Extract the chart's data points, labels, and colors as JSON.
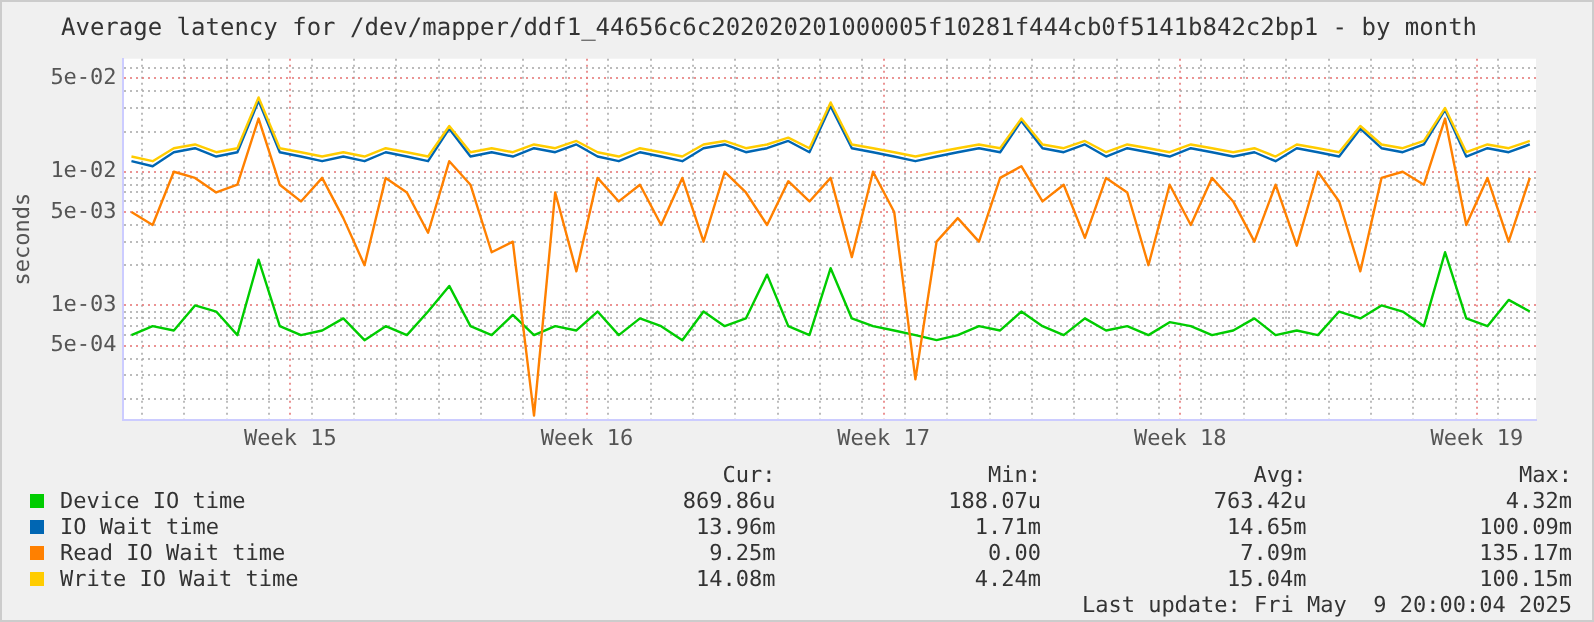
{
  "chart_data": {
    "type": "line",
    "title": "Average latency for /dev/mapper/ddf1_44656c6c202020201000005f10281f444cb0f5141b842c2bp1 - by month",
    "ylabel": "seconds",
    "log": "y",
    "grid": true,
    "legend": "bottom",
    "marker": "none",
    "line_style": "solid",
    "x": [
      "2025-04-06T18:00",
      "2025-04-07T06:00",
      "2025-04-07T18:00",
      "2025-04-08T06:00",
      "2025-04-08T18:00",
      "2025-04-09T06:00",
      "2025-04-09T18:00",
      "2025-04-10T06:00",
      "2025-04-10T18:00",
      "2025-04-11T06:00",
      "2025-04-11T18:00",
      "2025-04-12T06:00",
      "2025-04-12T18:00",
      "2025-04-13T06:00",
      "2025-04-13T18:00",
      "2025-04-14T06:00",
      "2025-04-14T18:00",
      "2025-04-15T06:00",
      "2025-04-15T18:00",
      "2025-04-16T06:00",
      "2025-04-16T18:00",
      "2025-04-17T06:00",
      "2025-04-17T18:00",
      "2025-04-18T06:00",
      "2025-04-18T18:00",
      "2025-04-19T06:00",
      "2025-04-19T18:00",
      "2025-04-20T06:00",
      "2025-04-20T18:00",
      "2025-04-21T06:00",
      "2025-04-21T18:00",
      "2025-04-22T06:00",
      "2025-04-22T18:00",
      "2025-04-23T06:00",
      "2025-04-23T18:00",
      "2025-04-24T06:00",
      "2025-04-24T18:00",
      "2025-04-25T06:00",
      "2025-04-25T18:00",
      "2025-04-26T06:00",
      "2025-04-26T18:00",
      "2025-04-27T06:00",
      "2025-04-27T18:00",
      "2025-04-28T06:00",
      "2025-04-28T18:00",
      "2025-04-29T06:00",
      "2025-04-29T18:00",
      "2025-04-30T06:00",
      "2025-04-30T18:00",
      "2025-05-01T06:00",
      "2025-05-01T18:00",
      "2025-05-02T06:00",
      "2025-05-02T18:00",
      "2025-05-03T06:00",
      "2025-05-03T18:00",
      "2025-05-04T06:00",
      "2025-05-04T18:00",
      "2025-05-05T06:00",
      "2025-05-05T18:00",
      "2025-05-06T06:00",
      "2025-05-06T18:00",
      "2025-05-07T06:00",
      "2025-05-07T18:00",
      "2025-05-08T06:00",
      "2025-05-08T18:00",
      "2025-05-09T06:00",
      "2025-05-09T18:00"
    ],
    "xlim": [
      "2025-04-06T13:00",
      "2025-05-09T21:30"
    ],
    "xticks": [
      {
        "value": "2025-04-07",
        "label": null
      },
      {
        "value": "2025-04-08",
        "label": null
      },
      {
        "value": "2025-04-09",
        "label": null
      },
      {
        "value": "2025-04-10",
        "label": null
      },
      {
        "value": "2025-04-10T12:00",
        "label": "Week 15"
      },
      {
        "value": "2025-04-11",
        "label": null
      },
      {
        "value": "2025-04-12",
        "label": null
      },
      {
        "value": "2025-04-13",
        "label": null
      },
      {
        "value": "2025-04-14",
        "label": null
      },
      {
        "value": "2025-04-15",
        "label": null
      },
      {
        "value": "2025-04-16",
        "label": null
      },
      {
        "value": "2025-04-17",
        "label": null
      },
      {
        "value": "2025-04-17T12:00",
        "label": "Week 16"
      },
      {
        "value": "2025-04-18",
        "label": null
      },
      {
        "value": "2025-04-19",
        "label": null
      },
      {
        "value": "2025-04-20",
        "label": null
      },
      {
        "value": "2025-04-21",
        "label": null
      },
      {
        "value": "2025-04-22",
        "label": null
      },
      {
        "value": "2025-04-23",
        "label": null
      },
      {
        "value": "2025-04-24",
        "label": null
      },
      {
        "value": "2025-04-24T12:00",
        "label": "Week 17"
      },
      {
        "value": "2025-04-25",
        "label": null
      },
      {
        "value": "2025-04-26",
        "label": null
      },
      {
        "value": "2025-04-27",
        "label": null
      },
      {
        "value": "2025-04-28",
        "label": null
      },
      {
        "value": "2025-04-29",
        "label": null
      },
      {
        "value": "2025-04-30",
        "label": null
      },
      {
        "value": "2025-05-01",
        "label": null
      },
      {
        "value": "2025-05-01T12:00",
        "label": "Week 18"
      },
      {
        "value": "2025-05-02",
        "label": null
      },
      {
        "value": "2025-05-03",
        "label": null
      },
      {
        "value": "2025-05-04",
        "label": null
      },
      {
        "value": "2025-05-05",
        "label": null
      },
      {
        "value": "2025-05-06",
        "label": null
      },
      {
        "value": "2025-05-07",
        "label": null
      },
      {
        "value": "2025-05-08",
        "label": null
      },
      {
        "value": "2025-05-08T12:00",
        "label": "Week 19"
      },
      {
        "value": "2025-05-09",
        "label": null
      }
    ],
    "ylim": [
      0.00014,
      0.07
    ],
    "yticks": [
      {
        "value": 0.0002,
        "label": null
      },
      {
        "value": 0.0003,
        "label": null
      },
      {
        "value": 0.0004,
        "label": null
      },
      {
        "value": 0.0005,
        "label": "5e-04"
      },
      {
        "value": 0.0006,
        "label": null
      },
      {
        "value": 0.0007,
        "label": null
      },
      {
        "value": 0.0008,
        "label": null
      },
      {
        "value": 0.0009,
        "label": null
      },
      {
        "value": 0.001,
        "label": "1e-03"
      },
      {
        "value": 0.002,
        "label": null
      },
      {
        "value": 0.003,
        "label": null
      },
      {
        "value": 0.004,
        "label": null
      },
      {
        "value": 0.005,
        "label": "5e-03"
      },
      {
        "value": 0.006,
        "label": null
      },
      {
        "value": 0.007,
        "label": null
      },
      {
        "value": 0.008,
        "label": null
      },
      {
        "value": 0.009,
        "label": null
      },
      {
        "value": 0.01,
        "label": "1e-02"
      },
      {
        "value": 0.02,
        "label": null
      },
      {
        "value": 0.03,
        "label": null
      },
      {
        "value": 0.04,
        "label": null
      },
      {
        "value": 0.05,
        "label": "5e-02"
      },
      {
        "value": 0.06,
        "label": null
      }
    ],
    "series": [
      {
        "name": "Device IO time",
        "color": "#00cc00",
        "values": [
          0.0006,
          0.0007,
          0.00065,
          0.001,
          0.0009,
          0.0006,
          0.0022,
          0.0007,
          0.0006,
          0.00065,
          0.0008,
          0.00055,
          0.0007,
          0.0006,
          0.0009,
          0.0014,
          0.0007,
          0.0006,
          0.00085,
          0.0006,
          0.0007,
          0.00065,
          0.0009,
          0.0006,
          0.0008,
          0.0007,
          0.00055,
          0.0009,
          0.0007,
          0.0008,
          0.0017,
          0.0007,
          0.0006,
          0.0019,
          0.0008,
          0.0007,
          0.00065,
          0.0006,
          0.00055,
          0.0006,
          0.0007,
          0.00065,
          0.0009,
          0.0007,
          0.0006,
          0.0008,
          0.00065,
          0.0007,
          0.0006,
          0.00075,
          0.0007,
          0.0006,
          0.00065,
          0.0008,
          0.0006,
          0.00065,
          0.0006,
          0.0009,
          0.0008,
          0.001,
          0.0009,
          0.0007,
          0.0025,
          0.0008,
          0.0007,
          0.0011,
          0.0009
        ]
      },
      {
        "name": "IO Wait time",
        "color": "#0066b3",
        "values": [
          0.012,
          0.011,
          0.014,
          0.015,
          0.013,
          0.014,
          0.034,
          0.014,
          0.013,
          0.012,
          0.013,
          0.012,
          0.014,
          0.013,
          0.012,
          0.021,
          0.013,
          0.014,
          0.013,
          0.015,
          0.014,
          0.016,
          0.013,
          0.012,
          0.014,
          0.013,
          0.012,
          0.015,
          0.016,
          0.014,
          0.015,
          0.017,
          0.014,
          0.031,
          0.015,
          0.014,
          0.013,
          0.012,
          0.013,
          0.014,
          0.015,
          0.014,
          0.024,
          0.015,
          0.014,
          0.016,
          0.013,
          0.015,
          0.014,
          0.013,
          0.015,
          0.014,
          0.013,
          0.014,
          0.012,
          0.015,
          0.014,
          0.013,
          0.021,
          0.015,
          0.014,
          0.016,
          0.029,
          0.013,
          0.015,
          0.014,
          0.016
        ]
      },
      {
        "name": "Read IO Wait time",
        "color": "#ff8000",
        "values": [
          0.005,
          0.004,
          0.01,
          0.009,
          0.007,
          0.008,
          0.025,
          0.008,
          0.006,
          0.009,
          0.0045,
          0.002,
          0.009,
          0.007,
          0.0035,
          0.012,
          0.008,
          0.0025,
          0.003,
          0.00015,
          0.007,
          0.0018,
          0.009,
          0.006,
          0.008,
          0.004,
          0.009,
          0.003,
          0.01,
          0.007,
          0.004,
          0.0085,
          0.006,
          0.009,
          0.0023,
          0.01,
          0.005,
          0.00028,
          0.003,
          0.0045,
          0.003,
          0.009,
          0.011,
          0.006,
          0.008,
          0.0032,
          0.009,
          0.007,
          0.002,
          0.008,
          0.004,
          0.009,
          0.006,
          0.003,
          0.008,
          0.0028,
          0.01,
          0.006,
          0.0018,
          0.009,
          0.01,
          0.008,
          0.025,
          0.004,
          0.009,
          0.003,
          0.009
        ]
      },
      {
        "name": "Write IO Wait time",
        "color": "#ffcc00",
        "values": [
          0.013,
          0.012,
          0.015,
          0.016,
          0.014,
          0.015,
          0.036,
          0.015,
          0.014,
          0.013,
          0.014,
          0.013,
          0.015,
          0.014,
          0.013,
          0.022,
          0.014,
          0.015,
          0.014,
          0.016,
          0.015,
          0.017,
          0.014,
          0.013,
          0.015,
          0.014,
          0.013,
          0.016,
          0.017,
          0.015,
          0.016,
          0.018,
          0.015,
          0.033,
          0.016,
          0.015,
          0.014,
          0.013,
          0.014,
          0.015,
          0.016,
          0.015,
          0.025,
          0.016,
          0.015,
          0.017,
          0.014,
          0.016,
          0.015,
          0.014,
          0.016,
          0.015,
          0.014,
          0.015,
          0.013,
          0.016,
          0.015,
          0.014,
          0.022,
          0.016,
          0.015,
          0.017,
          0.03,
          0.014,
          0.016,
          0.015,
          0.017
        ]
      }
    ],
    "annotations": [
      "Cur:",
      "Min:",
      "Avg:",
      "Max:",
      "869.86u",
      "188.07u",
      "763.42u",
      "4.32m",
      "13.96m",
      "1.71m",
      "14.65m",
      "100.09m",
      "9.25m",
      "0.00",
      "7.09m",
      "135.17m",
      "14.08m",
      "4.24m",
      "15.04m",
      "100.15m",
      "Last update: Fri May  9 20:00:04 2025"
    ]
  }
}
